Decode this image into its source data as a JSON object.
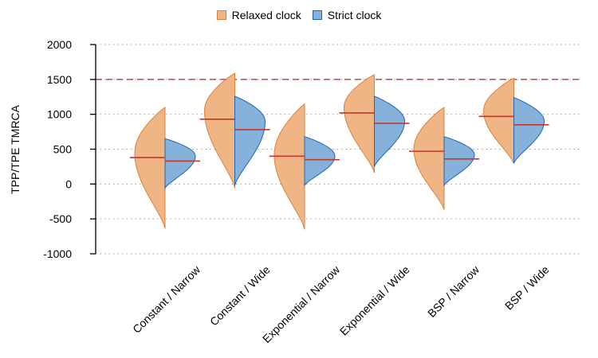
{
  "chart_data": {
    "type": "violin",
    "title": "",
    "xlabel": "",
    "ylabel": "TPP/TPE TMRCA",
    "ylim": [
      -1000,
      2000
    ],
    "yticks": [
      -1000,
      -500,
      0,
      500,
      1000,
      1500,
      2000
    ],
    "grid": "horizontal dotted",
    "legend_position": "top",
    "reference_line": {
      "y": 1500,
      "style": "dashed",
      "color": "#c0392b"
    },
    "categories": [
      "Constant / Narrow",
      "Constant / Wide",
      "Exponential / Narrow",
      "Exponential / Wide",
      "BSP / Narrow",
      "BSP / Wide"
    ],
    "series": [
      {
        "name": "Relaxed clock",
        "side": "left",
        "fill": "#f0b584",
        "stroke": "#d9823c",
        "distributions": [
          {
            "min": -640,
            "max": 1100,
            "median": 380,
            "peak": 450
          },
          {
            "min": -60,
            "max": 1590,
            "median": 930,
            "peak": 1050
          },
          {
            "min": -650,
            "max": 1150,
            "median": 400,
            "peak": 420
          },
          {
            "min": 160,
            "max": 1570,
            "median": 1020,
            "peak": 1100
          },
          {
            "min": -370,
            "max": 1100,
            "median": 470,
            "peak": 500
          },
          {
            "min": 290,
            "max": 1520,
            "median": 970,
            "peak": 1050
          }
        ]
      },
      {
        "name": "Strict clock",
        "side": "right",
        "fill": "#86b1da",
        "stroke": "#1f66b0",
        "distributions": [
          {
            "min": -60,
            "max": 650,
            "median": 330,
            "peak": 400
          },
          {
            "min": -20,
            "max": 1260,
            "median": 780,
            "peak": 900
          },
          {
            "min": -20,
            "max": 680,
            "median": 350,
            "peak": 400
          },
          {
            "min": 250,
            "max": 1260,
            "median": 870,
            "peak": 900
          },
          {
            "min": -20,
            "max": 680,
            "median": 360,
            "peak": 420
          },
          {
            "min": 300,
            "max": 1240,
            "median": 850,
            "peak": 900
          }
        ]
      }
    ],
    "median_line_color": "#c0392b"
  }
}
